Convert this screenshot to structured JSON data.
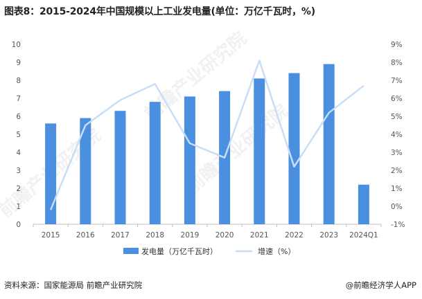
{
  "title": "图表8：2015-2024年中国规模以上工业发电量(单位：万亿千瓦时，%)",
  "footer": {
    "source": "资料来源：国家能源局 前瞻产业研究院",
    "brand": "@前瞻经济学人APP"
  },
  "watermark": "前瞻产业研究院",
  "colors": {
    "bar": "#4a8fe0",
    "line": "#c9def6",
    "axis": "#bfbfbf",
    "text": "#555555"
  },
  "chart_data": {
    "type": "bar",
    "categories": [
      "2015",
      "2016",
      "2017",
      "2018",
      "2019",
      "2020",
      "2021",
      "2022",
      "2023",
      "2024Q1"
    ],
    "series": [
      {
        "name": "发电量（万亿千瓦时）",
        "type": "bar",
        "axis": "left",
        "values": [
          5.6,
          5.9,
          6.3,
          6.8,
          7.1,
          7.4,
          8.1,
          8.4,
          8.9,
          2.2
        ]
      },
      {
        "name": "增速（%）",
        "type": "line",
        "axis": "right",
        "values": [
          -0.2,
          4.5,
          5.9,
          6.8,
          3.5,
          2.7,
          8.1,
          2.2,
          5.2,
          6.7
        ]
      }
    ],
    "left_axis": {
      "min": 0,
      "max": 10,
      "ticks": [
        "0",
        "1",
        "2",
        "3",
        "4",
        "5",
        "6",
        "7",
        "8",
        "9",
        "10"
      ]
    },
    "right_axis": {
      "min": -1,
      "max": 9,
      "ticks": [
        "-1%",
        "0%",
        "1%",
        "2%",
        "3%",
        "4%",
        "5%",
        "6%",
        "7%",
        "8%",
        "9%"
      ]
    },
    "legend_position": "bottom-center",
    "grid": false
  }
}
